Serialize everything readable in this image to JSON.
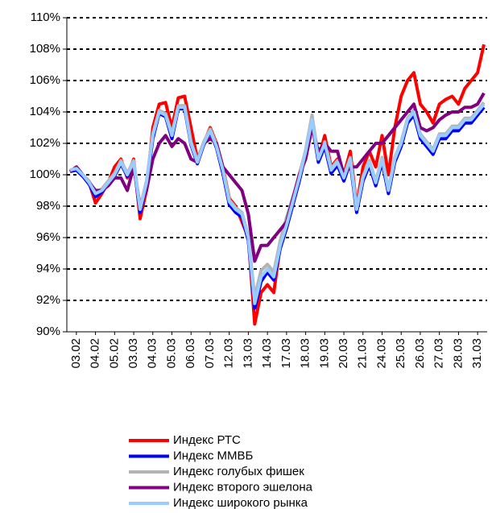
{
  "chart_data": {
    "type": "line",
    "categories": [
      null,
      "03.02",
      null,
      null,
      "04.02",
      null,
      null,
      "05.02",
      null,
      null,
      "03.03",
      null,
      null,
      "04.03",
      null,
      null,
      "05.03",
      null,
      null,
      "06.03",
      null,
      null,
      "07.03",
      null,
      null,
      "12.03",
      null,
      null,
      "13.03",
      null,
      null,
      "14.03",
      null,
      null,
      "17.03",
      null,
      null,
      "18.03",
      null,
      null,
      "19.03",
      null,
      null,
      "20.03",
      null,
      null,
      "21.03",
      null,
      null,
      "24.03",
      null,
      null,
      "25.03",
      null,
      null,
      "26.03",
      null,
      null,
      "27.03",
      null,
      null,
      "28.03",
      null,
      null,
      "31.03",
      null
    ],
    "ylim": [
      90,
      110
    ],
    "yticks": [
      {
        "value": 90,
        "label": "90%"
      },
      {
        "value": 92,
        "label": "92%"
      },
      {
        "value": 94,
        "label": "94%"
      },
      {
        "value": 96,
        "label": "96%"
      },
      {
        "value": 98,
        "label": "98%"
      },
      {
        "value": 100,
        "label": "100%"
      },
      {
        "value": 102,
        "label": "102%"
      },
      {
        "value": 104,
        "label": "104%"
      },
      {
        "value": 106,
        "label": "106%"
      },
      {
        "value": 108,
        "label": "108%"
      },
      {
        "value": 110,
        "label": "110%"
      }
    ],
    "grid": true,
    "legend": "bottom",
    "series": [
      {
        "name": "Индекс РТС",
        "color": "#ff0000",
        "values": [
          100.2,
          100.5,
          100.0,
          99.5,
          98.2,
          98.8,
          99.5,
          100.5,
          101.0,
          99.8,
          101.0,
          97.2,
          99.0,
          103.0,
          104.5,
          104.6,
          103.0,
          104.9,
          105.0,
          103.0,
          101.0,
          102.0,
          103.0,
          102.0,
          100.5,
          98.5,
          98.0,
          97.0,
          96.0,
          90.5,
          92.5,
          93.0,
          92.5,
          95.5,
          97.0,
          98.5,
          100.0,
          101.5,
          103.5,
          101.0,
          102.5,
          100.5,
          101.0,
          100.0,
          101.5,
          98.0,
          100.5,
          101.5,
          100.5,
          102.5,
          100.0,
          103.0,
          105.0,
          106.0,
          106.5,
          104.5,
          104.0,
          103.3,
          104.5,
          104.8,
          105.0,
          104.5,
          105.5,
          106.0,
          106.5,
          108.3
        ]
      },
      {
        "name": "Индекс ММВБ",
        "color": "#0000ff",
        "values": [
          100.2,
          100.3,
          99.9,
          99.4,
          98.6,
          98.9,
          99.4,
          99.9,
          100.7,
          99.9,
          100.7,
          97.6,
          99.3,
          102.3,
          103.9,
          103.7,
          102.3,
          104.2,
          104.2,
          101.9,
          100.7,
          101.9,
          102.7,
          101.7,
          100.1,
          98.1,
          97.6,
          97.3,
          95.8,
          91.5,
          93.2,
          93.8,
          93.3,
          95.3,
          96.6,
          98.1,
          99.6,
          101.3,
          103.3,
          100.8,
          101.8,
          100.1,
          100.6,
          99.6,
          100.8,
          97.6,
          99.6,
          100.6,
          99.3,
          100.8,
          98.8,
          100.8,
          101.8,
          103.3,
          103.8,
          102.3,
          101.8,
          101.3,
          102.3,
          102.3,
          102.8,
          102.8,
          103.3,
          103.3,
          103.8,
          104.3
        ]
      },
      {
        "name": "Индекс голубых фишек",
        "color": "#b3b3b3",
        "values": [
          100.3,
          100.4,
          100.0,
          99.6,
          98.9,
          99.1,
          99.6,
          100.1,
          100.9,
          100.1,
          100.9,
          97.9,
          99.6,
          102.6,
          104.1,
          103.9,
          102.6,
          104.4,
          104.4,
          102.1,
          100.9,
          102.1,
          102.9,
          101.9,
          100.4,
          98.4,
          97.9,
          97.6,
          96.1,
          92.2,
          93.9,
          94.3,
          93.8,
          95.8,
          97.3,
          98.6,
          99.9,
          101.6,
          103.8,
          101.1,
          102.1,
          100.4,
          100.9,
          99.9,
          101.1,
          97.9,
          99.9,
          100.9,
          99.6,
          101.1,
          99.1,
          101.1,
          102.1,
          103.6,
          104.1,
          102.6,
          102.1,
          101.6,
          102.6,
          102.6,
          103.1,
          103.1,
          103.6,
          103.6,
          104.1,
          104.6
        ]
      },
      {
        "name": "Индекс второго эшелона",
        "color": "#800080",
        "values": [
          100.2,
          100.5,
          100.0,
          99.5,
          99.0,
          99.0,
          99.3,
          99.8,
          99.8,
          99.0,
          100.5,
          98.0,
          99.0,
          101.0,
          102.0,
          102.5,
          101.8,
          102.3,
          102.0,
          101.0,
          100.8,
          102.0,
          102.3,
          102.0,
          100.5,
          100.0,
          99.5,
          99.0,
          97.5,
          94.5,
          95.5,
          95.5,
          96.0,
          96.5,
          97.0,
          98.5,
          100.0,
          101.0,
          103.0,
          101.5,
          102.0,
          101.5,
          101.5,
          100.0,
          100.5,
          100.5,
          101.0,
          101.5,
          102.0,
          102.0,
          102.5,
          103.0,
          103.5,
          104.0,
          104.5,
          103.0,
          102.8,
          103.0,
          103.5,
          103.8,
          104.0,
          104.0,
          104.3,
          104.3,
          104.5,
          105.2
        ]
      },
      {
        "name": "Индекс широкого рынка",
        "color": "#99ccff",
        "values": [
          100.3,
          100.4,
          100.0,
          99.5,
          98.8,
          99.0,
          99.5,
          100.0,
          100.8,
          100.0,
          100.8,
          97.8,
          99.5,
          102.5,
          104.0,
          103.8,
          102.5,
          104.3,
          104.3,
          102.0,
          100.8,
          102.0,
          102.8,
          101.8,
          100.3,
          98.3,
          97.8,
          97.5,
          96.0,
          91.8,
          93.5,
          94.0,
          93.5,
          95.5,
          96.8,
          98.3,
          99.8,
          101.5,
          103.5,
          101.0,
          102.0,
          100.3,
          100.8,
          99.8,
          101.0,
          97.8,
          99.8,
          100.8,
          99.5,
          101.0,
          99.0,
          101.0,
          102.0,
          103.5,
          104.0,
          102.5,
          102.0,
          101.5,
          102.5,
          102.5,
          103.0,
          103.0,
          103.5,
          103.5,
          104.0,
          104.5
        ]
      }
    ]
  }
}
